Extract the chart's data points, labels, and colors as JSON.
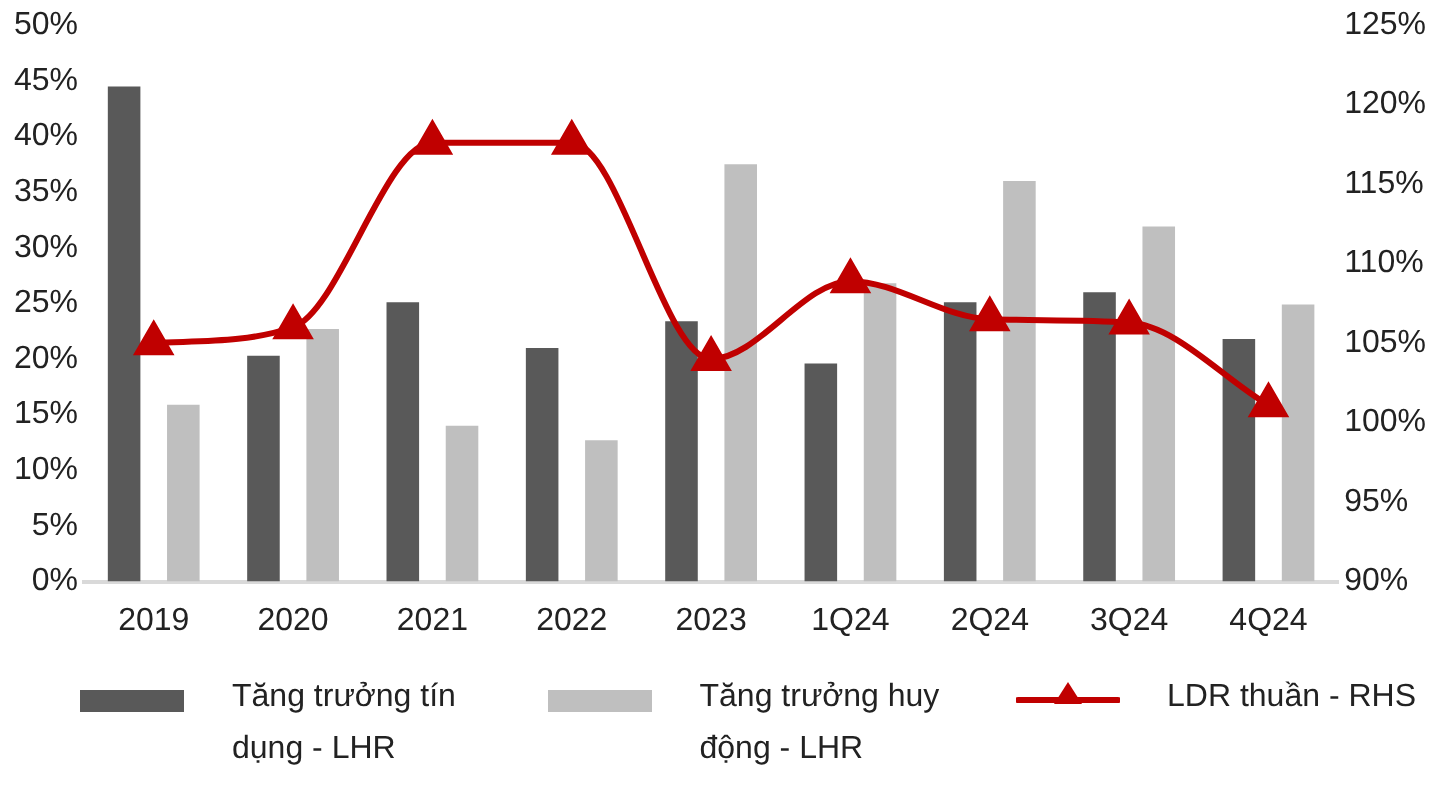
{
  "chart_data": {
    "type": "bar",
    "categories": [
      "2019",
      "2020",
      "2021",
      "2022",
      "2023",
      "1Q24",
      "2Q24",
      "3Q24",
      "4Q24"
    ],
    "series": [
      {
        "name": "Tăng trưởng tín dụng - LHR",
        "color": "#595959",
        "values": [
          44.5,
          20.3,
          25.1,
          21.0,
          23.4,
          19.6,
          25.1,
          26.0,
          21.8
        ]
      },
      {
        "name": "Tăng trưởng huy động - LHR",
        "color": "#bfbfbf",
        "values": [
          15.9,
          22.7,
          14.0,
          12.7,
          37.5,
          26.8,
          36.0,
          31.9,
          24.9
        ]
      },
      {
        "name": "LDR thuần - RHS",
        "type": "line",
        "axis": "y2",
        "color": "#c00000",
        "marker": "triangle",
        "values": [
          105.0,
          106.0,
          117.6,
          117.6,
          104.0,
          108.9,
          106.5,
          106.3,
          101.1
        ]
      }
    ],
    "ylim": [
      0,
      50
    ],
    "yticks": [
      {
        "value": 0,
        "label": "0%"
      },
      {
        "value": 5,
        "label": "5%"
      },
      {
        "value": 10,
        "label": "10%"
      },
      {
        "value": 15,
        "label": "15%"
      },
      {
        "value": 20,
        "label": "20%"
      },
      {
        "value": 25,
        "label": "25%"
      },
      {
        "value": 30,
        "label": "30%"
      },
      {
        "value": 35,
        "label": "35%"
      },
      {
        "value": 40,
        "label": "40%"
      },
      {
        "value": 45,
        "label": "45%"
      },
      {
        "value": 50,
        "label": "50%"
      }
    ],
    "y2lim": [
      90,
      125
    ],
    "y2ticks": [
      {
        "value": 90,
        "label": "90%"
      },
      {
        "value": 95,
        "label": "95%"
      },
      {
        "value": 100,
        "label": "100%"
      },
      {
        "value": 105,
        "label": "105%"
      },
      {
        "value": 110,
        "label": "110%"
      },
      {
        "value": 115,
        "label": "115%"
      },
      {
        "value": 120,
        "label": "120%"
      },
      {
        "value": 125,
        "label": "125%"
      }
    ],
    "grid": false,
    "legend": "bottom"
  }
}
